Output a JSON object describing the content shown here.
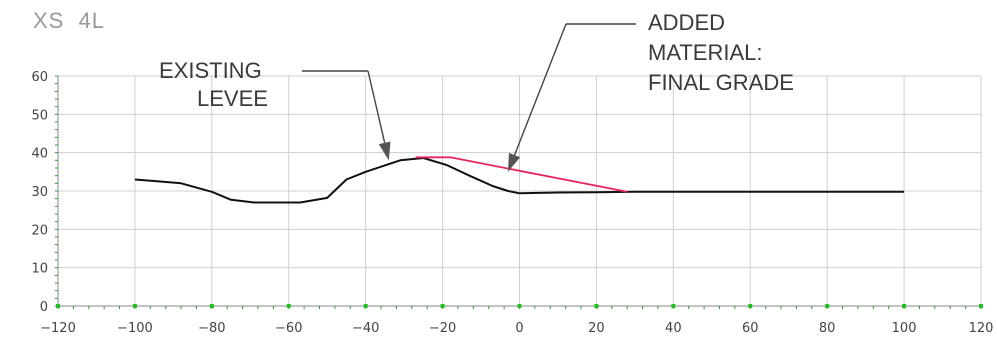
{
  "chart_data": {
    "type": "line",
    "title": "XS  4L",
    "xlabel": "",
    "ylabel": "",
    "xlim": [
      -120,
      120
    ],
    "ylim": [
      0,
      60
    ],
    "x_ticks": [
      -120,
      -100,
      -80,
      -60,
      -40,
      -20,
      0,
      20,
      40,
      60,
      80,
      100,
      120
    ],
    "y_ticks": [
      0,
      10,
      20,
      30,
      40,
      50,
      60
    ],
    "grid": true,
    "series": [
      {
        "color": "#111111",
        "points": [
          [
            -100,
            33
          ],
          [
            -95,
            32.6
          ],
          [
            -88,
            32
          ],
          [
            -80,
            29.8
          ],
          [
            -75,
            27.7
          ],
          [
            -69,
            27
          ],
          [
            -62,
            27
          ],
          [
            -57,
            27
          ],
          [
            -50,
            28.2
          ],
          [
            -45,
            33
          ],
          [
            -40,
            35
          ],
          [
            -31,
            38
          ],
          [
            -25,
            38.6
          ],
          [
            -19,
            36.8
          ],
          [
            -13,
            34
          ],
          [
            -7,
            31.3
          ],
          [
            -3,
            30
          ],
          [
            0,
            29.4
          ],
          [
            10,
            29.6
          ],
          [
            20,
            29.7
          ],
          [
            30,
            29.8
          ],
          [
            100,
            29.8
          ]
        ]
      },
      {
        "color": "#e8255a",
        "points": [
          [
            -27,
            38.8
          ],
          [
            -18,
            38.8
          ],
          [
            28,
            29.8
          ]
        ]
      }
    ],
    "annotations": [
      {
        "lines": [
          "EXISTING",
          "LEVEE"
        ],
        "points_to": [
          -34,
          38
        ]
      },
      {
        "lines": [
          "ADDED",
          "MATERIAL:",
          "FINAL GRADE"
        ],
        "points_to": [
          -3,
          35
        ]
      }
    ]
  }
}
